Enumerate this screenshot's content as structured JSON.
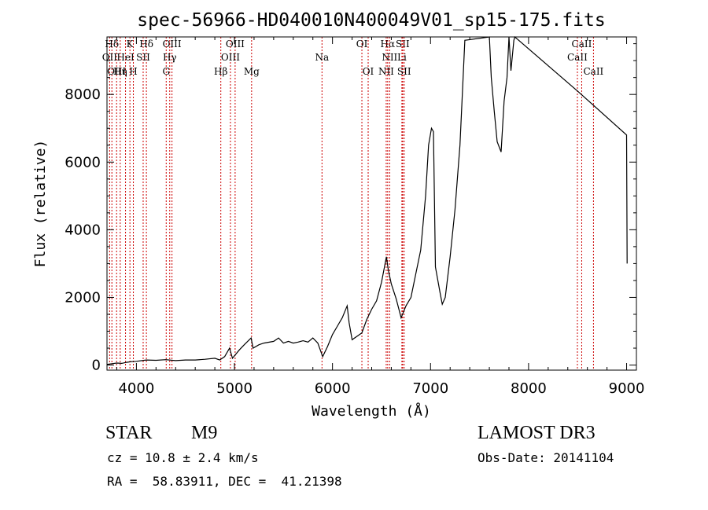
{
  "chart_data": {
    "type": "line",
    "title": "spec-56966-HD040010N400049V01_sp15-175.fits",
    "xlabel": "Wavelength (Å)",
    "ylabel": "Flux (relative)",
    "xlim": [
      3700,
      9100
    ],
    "ylim": [
      -150,
      9700
    ],
    "xticks": [
      4000,
      5000,
      6000,
      7000,
      8000,
      9000
    ],
    "yticks": [
      0,
      2000,
      4000,
      6000,
      8000
    ],
    "series": [
      {
        "name": "spectrum",
        "points": [
          [
            3700,
            20
          ],
          [
            3750,
            40
          ],
          [
            3800,
            60
          ],
          [
            3850,
            50
          ],
          [
            3900,
            80
          ],
          [
            3950,
            100
          ],
          [
            4000,
            110
          ],
          [
            4100,
            150
          ],
          [
            4200,
            140
          ],
          [
            4300,
            160
          ],
          [
            4400,
            130
          ],
          [
            4500,
            150
          ],
          [
            4600,
            150
          ],
          [
            4700,
            170
          ],
          [
            4800,
            200
          ],
          [
            4850,
            150
          ],
          [
            4900,
            250
          ],
          [
            4950,
            500
          ],
          [
            4980,
            200
          ],
          [
            5050,
            450
          ],
          [
            5100,
            600
          ],
          [
            5170,
            800
          ],
          [
            5190,
            500
          ],
          [
            5250,
            600
          ],
          [
            5300,
            650
          ],
          [
            5400,
            700
          ],
          [
            5450,
            800
          ],
          [
            5500,
            650
          ],
          [
            5550,
            700
          ],
          [
            5600,
            650
          ],
          [
            5650,
            680
          ],
          [
            5700,
            720
          ],
          [
            5750,
            680
          ],
          [
            5800,
            800
          ],
          [
            5850,
            650
          ],
          [
            5900,
            250
          ],
          [
            5950,
            550
          ],
          [
            6000,
            900
          ],
          [
            6050,
            1150
          ],
          [
            6100,
            1400
          ],
          [
            6150,
            1750
          ],
          [
            6170,
            1250
          ],
          [
            6200,
            750
          ],
          [
            6250,
            850
          ],
          [
            6300,
            950
          ],
          [
            6350,
            1350
          ],
          [
            6400,
            1650
          ],
          [
            6450,
            1900
          ],
          [
            6500,
            2450
          ],
          [
            6550,
            3200
          ],
          [
            6570,
            2800
          ],
          [
            6600,
            2400
          ],
          [
            6650,
            1950
          ],
          [
            6700,
            1400
          ],
          [
            6750,
            1750
          ],
          [
            6800,
            2000
          ],
          [
            6850,
            2700
          ],
          [
            6900,
            3400
          ],
          [
            6950,
            5000
          ],
          [
            6980,
            6500
          ],
          [
            7010,
            7000
          ],
          [
            7030,
            6900
          ],
          [
            7050,
            2900
          ],
          [
            7100,
            2100
          ],
          [
            7120,
            1800
          ],
          [
            7150,
            2000
          ],
          [
            7200,
            3200
          ],
          [
            7250,
            4600
          ],
          [
            7300,
            6500
          ],
          [
            7350,
            9600
          ],
          [
            7600,
            9700
          ],
          [
            7620,
            8500
          ],
          [
            7650,
            7500
          ],
          [
            7680,
            6600
          ],
          [
            7720,
            6300
          ],
          [
            7750,
            7800
          ],
          [
            7780,
            8500
          ],
          [
            7800,
            9700
          ],
          [
            7820,
            8700
          ],
          [
            7850,
            9600
          ],
          [
            7860,
            9700
          ],
          [
            8500,
            8100
          ],
          [
            9000,
            6800
          ],
          [
            9005,
            3000
          ]
        ]
      }
    ],
    "line_markers": [
      {
        "label": "Hδ",
        "wavelength": 3750,
        "row": 0
      },
      {
        "label": "K",
        "wavelength": 3934,
        "row": 0
      },
      {
        "label": "Hδ",
        "wavelength": 4102,
        "row": 0
      },
      {
        "label": "OIII",
        "wavelength": 4363,
        "row": 0
      },
      {
        "label": "OIII",
        "wavelength": 5007,
        "row": 0
      },
      {
        "label": "OI",
        "wavelength": 6300,
        "row": 0
      },
      {
        "label": "Hα",
        "wavelength": 6563,
        "row": 0
      },
      {
        "label": "SII",
        "wavelength": 6716,
        "row": 0
      },
      {
        "label": "CaII",
        "wavelength": 8542,
        "row": 0
      },
      {
        "label": "OII",
        "wavelength": 3727,
        "row": 1
      },
      {
        "label": "HeI",
        "wavelength": 3889,
        "row": 1
      },
      {
        "label": "SII",
        "wavelength": 4069,
        "row": 1
      },
      {
        "label": "Hγ",
        "wavelength": 4340,
        "row": 1
      },
      {
        "label": "OIII",
        "wavelength": 4959,
        "row": 1
      },
      {
        "label": "Na",
        "wavelength": 5893,
        "row": 1
      },
      {
        "label": "NII",
        "wavelength": 6583,
        "row": 1
      },
      {
        "label": "Li",
        "wavelength": 6708,
        "row": 1
      },
      {
        "label": "CaII",
        "wavelength": 8498,
        "row": 1
      },
      {
        "label": "OIII",
        "wavelength": 3798,
        "row": 2
      },
      {
        "label": "Hη",
        "wavelength": 3835,
        "row": 2
      },
      {
        "label": "H",
        "wavelength": 3969,
        "row": 2
      },
      {
        "label": "G",
        "wavelength": 4304,
        "row": 2
      },
      {
        "label": "Hβ",
        "wavelength": 4861,
        "row": 2
      },
      {
        "label": "Mg",
        "wavelength": 5175,
        "row": 2
      },
      {
        "label": "OI",
        "wavelength": 6364,
        "row": 2
      },
      {
        "label": "NII",
        "wavelength": 6548,
        "row": 2
      },
      {
        "label": "SII",
        "wavelength": 6731,
        "row": 2
      },
      {
        "label": "CaII",
        "wavelength": 8662,
        "row": 2
      }
    ]
  },
  "info": {
    "class": "STAR",
    "subclass": "M9",
    "survey": "LAMOST DR3",
    "cz": "cz = 10.8 ± 2.4 km/s",
    "obs_date": "Obs-Date: 20141104",
    "coords": "RA =  58.83911, DEC =  41.21398"
  },
  "colors": {
    "marker": "#cc0000",
    "line": "#000000"
  }
}
